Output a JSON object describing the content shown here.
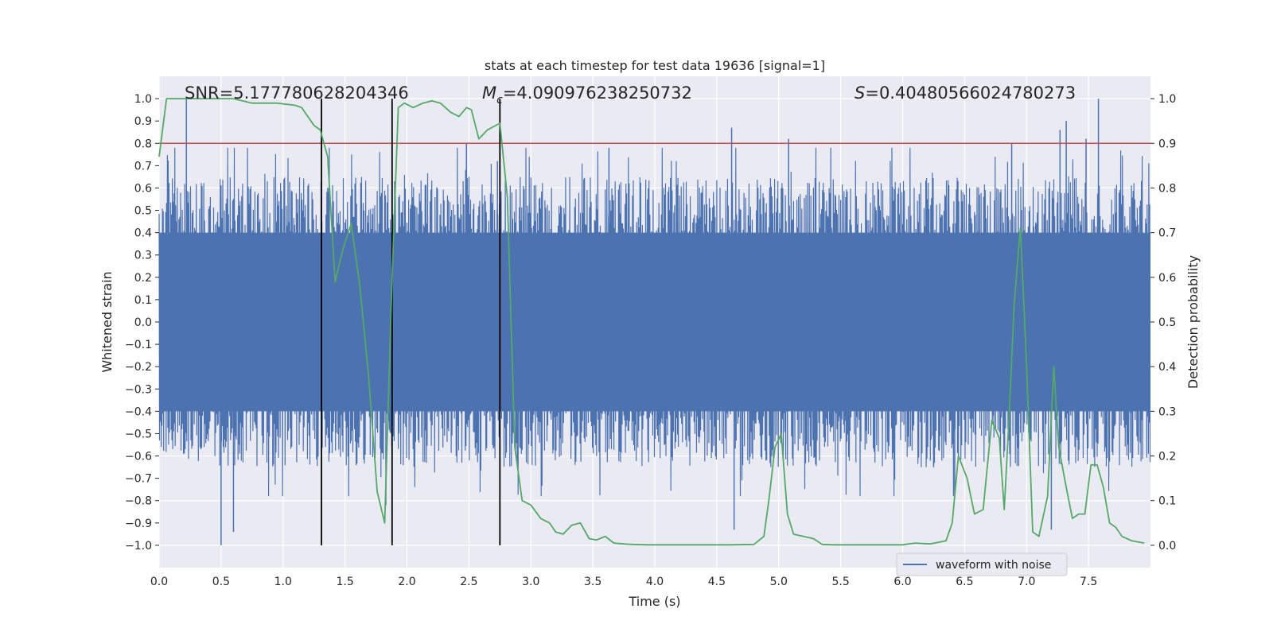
{
  "chart_data": {
    "type": "line",
    "title": "stats at each timestep for test data 19636 [signal=1]",
    "xlabel": "Time (s)",
    "ylabel": "Whitened strain",
    "y2label": "Detection probability",
    "xlim": [
      0.0,
      8.0
    ],
    "ylim": [
      -1.1,
      1.1
    ],
    "y2lim": [
      -0.05,
      1.05
    ],
    "xticks": [
      0.0,
      0.5,
      1.0,
      1.5,
      2.0,
      2.5,
      3.0,
      3.5,
      4.0,
      4.5,
      5.0,
      5.5,
      6.0,
      6.5,
      7.0,
      7.5
    ],
    "xtick_labels": [
      "0.0",
      "0.5",
      "1.0",
      "1.5",
      "2.0",
      "2.5",
      "3.0",
      "3.5",
      "4.0",
      "4.5",
      "5.0",
      "5.5",
      "6.0",
      "6.5",
      "7.0",
      "7.5"
    ],
    "yticks": [
      1.0,
      0.9,
      0.8,
      0.7,
      0.6,
      0.5,
      0.4,
      0.3,
      0.2,
      0.1,
      0.0,
      -0.1,
      -0.2,
      -0.3,
      -0.4,
      -0.5,
      -0.6,
      -0.7,
      -0.8,
      -0.9,
      -1.0
    ],
    "ytick_labels": [
      "1.0",
      "0.9",
      "0.8",
      "0.7",
      "0.6",
      "0.5",
      "0.4",
      "0.3",
      "0.2",
      "0.1",
      "0.0",
      "−0.1",
      "−0.2",
      "−0.3",
      "−0.4",
      "−0.5",
      "−0.6",
      "−0.7",
      "−0.8",
      "−0.9",
      "−1.0"
    ],
    "y2ticks": [
      1.0,
      0.9,
      0.8,
      0.7,
      0.6,
      0.5,
      0.4,
      0.3,
      0.2,
      0.1,
      0.0
    ],
    "y2tick_labels": [
      "1.0",
      "0.9",
      "0.8",
      "0.7",
      "0.6",
      "0.5",
      "0.4",
      "0.3",
      "0.2",
      "0.1",
      "0.0"
    ],
    "grid": true,
    "legend": {
      "entries": [
        "waveform with noise"
      ],
      "location": "lower-right"
    },
    "annotations": {
      "snr": "SNR=5.177780628204346",
      "mc_symbol": "M",
      "mc_subscript": "c",
      "mc_value": "=4.090976238250732",
      "s_symbol": "S",
      "s_value": "=0.40480566024780273"
    },
    "threshold": {
      "axis": "y2",
      "value": 0.9,
      "color": "#c44e52"
    },
    "vertical_markers": [
      1.31,
      1.88,
      2.75
    ],
    "waveform": {
      "name": "waveform with noise",
      "color": "#4c72b0",
      "duration": 8.0,
      "core_amplitude": 0.4,
      "max_amplitude": 1.0,
      "spikes": [
        {
          "t": 0.22,
          "v": 1.0
        },
        {
          "t": 0.5,
          "v": -1.0
        },
        {
          "t": 0.6,
          "v": -0.94
        },
        {
          "t": 1.12,
          "v": 0.55
        },
        {
          "t": 1.37,
          "v": 0.6
        },
        {
          "t": 1.83,
          "v": -0.82
        },
        {
          "t": 2.48,
          "v": 0.8
        },
        {
          "t": 2.73,
          "v": 0.72
        },
        {
          "t": 3.63,
          "v": 0.78
        },
        {
          "t": 4.62,
          "v": 0.87
        },
        {
          "t": 4.64,
          "v": -0.93
        },
        {
          "t": 5.08,
          "v": 0.82
        },
        {
          "t": 6.42,
          "v": -0.77
        },
        {
          "t": 7.2,
          "v": -0.93
        },
        {
          "t": 7.27,
          "v": 0.86
        },
        {
          "t": 7.32,
          "v": 0.9
        },
        {
          "t": 7.58,
          "v": 1.0
        },
        {
          "t": 7.48,
          "v": 0.82
        },
        {
          "t": 6.88,
          "v": 0.8
        },
        {
          "t": 6.25,
          "v": -0.65
        }
      ]
    },
    "detection_probability": {
      "color": "#55a868",
      "x": [
        0.0,
        0.06,
        0.12,
        0.25,
        0.45,
        0.6,
        0.75,
        0.82,
        0.95,
        1.1,
        1.15,
        1.2,
        1.25,
        1.3,
        1.36,
        1.42,
        1.48,
        1.55,
        1.62,
        1.69,
        1.76,
        1.82,
        1.88,
        1.93,
        1.98,
        2.05,
        2.13,
        2.2,
        2.27,
        2.35,
        2.42,
        2.48,
        2.52,
        2.58,
        2.65,
        2.75,
        2.81,
        2.87,
        2.93,
        3.0,
        3.08,
        3.15,
        3.2,
        3.26,
        3.33,
        3.4,
        3.47,
        3.53,
        3.6,
        3.67,
        3.75,
        3.82,
        3.95,
        4.1,
        4.35,
        4.6,
        4.8,
        4.88,
        4.92,
        4.97,
        5.02,
        5.07,
        5.12,
        5.2,
        5.28,
        5.35,
        5.45,
        5.6,
        5.8,
        6.0,
        6.1,
        6.22,
        6.35,
        6.4,
        6.45,
        6.52,
        6.58,
        6.65,
        6.72,
        6.78,
        6.82,
        6.86,
        6.9,
        6.95,
        7.0,
        7.05,
        7.1,
        7.17,
        7.22,
        7.26,
        7.32,
        7.37,
        7.42,
        7.47,
        7.52,
        7.57,
        7.62,
        7.67,
        7.72,
        7.77,
        7.85,
        7.95
      ],
      "y": [
        0.87,
        1.0,
        1.0,
        1.0,
        1.0,
        1.0,
        0.99,
        0.99,
        0.99,
        0.985,
        0.98,
        0.96,
        0.94,
        0.93,
        0.87,
        0.59,
        0.66,
        0.72,
        0.58,
        0.38,
        0.12,
        0.05,
        0.6,
        0.98,
        0.99,
        0.98,
        0.99,
        0.995,
        0.99,
        0.97,
        0.96,
        0.98,
        0.975,
        0.91,
        0.93,
        0.945,
        0.78,
        0.22,
        0.1,
        0.09,
        0.06,
        0.05,
        0.03,
        0.025,
        0.045,
        0.05,
        0.015,
        0.012,
        0.02,
        0.005,
        0.003,
        0.002,
        0.001,
        0.001,
        0.001,
        0.001,
        0.002,
        0.02,
        0.1,
        0.22,
        0.25,
        0.07,
        0.025,
        0.02,
        0.015,
        0.002,
        0.001,
        0.001,
        0.001,
        0.001,
        0.005,
        0.003,
        0.01,
        0.05,
        0.2,
        0.15,
        0.07,
        0.08,
        0.28,
        0.24,
        0.08,
        0.29,
        0.54,
        0.71,
        0.4,
        0.03,
        0.02,
        0.11,
        0.4,
        0.22,
        0.13,
        0.06,
        0.07,
        0.07,
        0.18,
        0.18,
        0.13,
        0.05,
        0.04,
        0.02,
        0.01,
        0.005
      ]
    }
  }
}
